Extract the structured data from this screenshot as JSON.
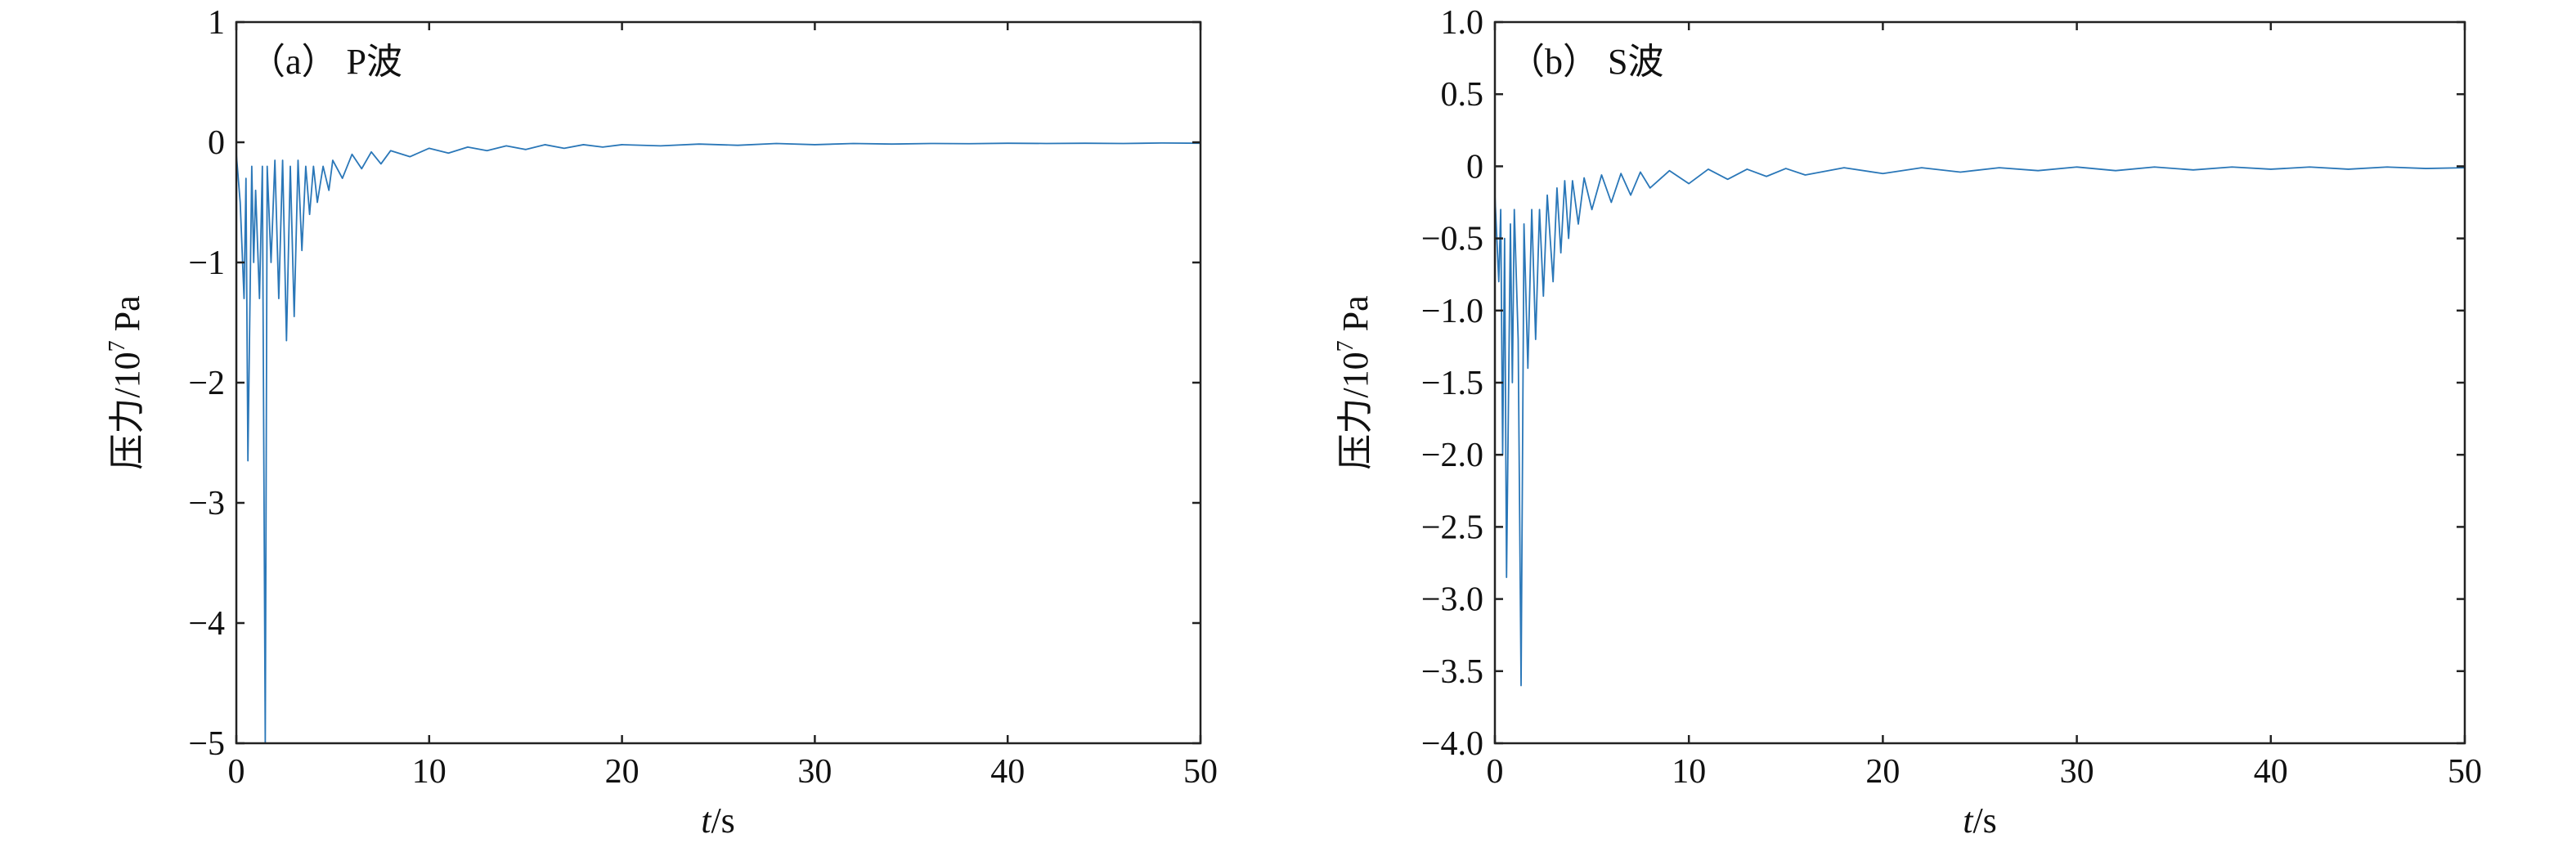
{
  "chart_data": [
    {
      "type": "line",
      "panel_label": "（a） P波",
      "xlabel_italic": "t",
      "xlabel_unit": "/s",
      "ylabel_main": "压力/10",
      "ylabel_sup": "7",
      "ylabel_unit": " Pa",
      "xlim": [
        0,
        50
      ],
      "ylim": [
        -5,
        1
      ],
      "xticks": [
        0,
        10,
        20,
        30,
        40,
        50
      ],
      "xtick_labels": [
        "0",
        "10",
        "20",
        "30",
        "40",
        "50"
      ],
      "yticks": [
        1,
        0,
        -1,
        -2,
        -3,
        -4,
        -5
      ],
      "ytick_labels": [
        "1",
        "0",
        "−1",
        "−2",
        "−3",
        "−4",
        "−5"
      ],
      "grid": false,
      "color": "#2a77b8",
      "series": [
        {
          "x": [
            0,
            0.2,
            0.4,
            0.5,
            0.6,
            0.8,
            0.9,
            1.0,
            1.2,
            1.35,
            1.5,
            1.6,
            1.8,
            2.0,
            2.2,
            2.4,
            2.6,
            2.8,
            3.0,
            3.2,
            3.4,
            3.6,
            3.8,
            4.0,
            4.2,
            4.5,
            4.8,
            5.0,
            5.5,
            6.0,
            6.5,
            7.0,
            7.5,
            8.0,
            9.0,
            10.0,
            11.0,
            12.0,
            13.0,
            14.0,
            15.0,
            16.0,
            17.0,
            18.0,
            19.0,
            20.0,
            22.0,
            24.0,
            26.0,
            28.0,
            30.0,
            32.0,
            34.0,
            36.0,
            38.0,
            40.0,
            42.0,
            44.0,
            46.0,
            48.0,
            50.0
          ],
          "y": [
            -0.1,
            -0.5,
            -1.3,
            -0.3,
            -2.65,
            -0.2,
            -1.0,
            -0.4,
            -1.3,
            -0.2,
            -5.0,
            -0.2,
            -1.0,
            -0.15,
            -1.3,
            -0.15,
            -1.65,
            -0.2,
            -1.45,
            -0.15,
            -0.9,
            -0.2,
            -0.6,
            -0.2,
            -0.5,
            -0.2,
            -0.4,
            -0.15,
            -0.3,
            -0.1,
            -0.22,
            -0.08,
            -0.18,
            -0.07,
            -0.12,
            -0.05,
            -0.09,
            -0.04,
            -0.07,
            -0.03,
            -0.06,
            -0.02,
            -0.05,
            -0.02,
            -0.04,
            -0.02,
            -0.03,
            -0.015,
            -0.025,
            -0.01,
            -0.02,
            -0.01,
            -0.015,
            -0.01,
            -0.012,
            -0.008,
            -0.01,
            -0.008,
            -0.01,
            -0.006,
            -0.008
          ]
        }
      ]
    },
    {
      "type": "line",
      "panel_label": "（b） S波",
      "xlabel_italic": "t",
      "xlabel_unit": "/s",
      "ylabel_main": "压力/10",
      "ylabel_sup": "7",
      "ylabel_unit": " Pa",
      "xlim": [
        0,
        50
      ],
      "ylim": [
        -4.0,
        1.0
      ],
      "xticks": [
        0,
        10,
        20,
        30,
        40,
        50
      ],
      "xtick_labels": [
        "0",
        "10",
        "20",
        "30",
        "40",
        "50"
      ],
      "yticks": [
        1.0,
        0.5,
        0,
        -0.5,
        -1.0,
        -1.5,
        -2.0,
        -2.5,
        -3.0,
        -3.5,
        -4.0
      ],
      "ytick_labels": [
        "1.0",
        "0.5",
        "0",
        "−0.5",
        "−1.0",
        "−1.5",
        "−2.0",
        "−2.5",
        "−3.0",
        "−3.5",
        "−4.0"
      ],
      "grid": false,
      "color": "#2a77b8",
      "series": [
        {
          "x": [
            0,
            0.2,
            0.3,
            0.4,
            0.5,
            0.6,
            0.8,
            0.9,
            1.0,
            1.2,
            1.35,
            1.5,
            1.7,
            1.9,
            2.1,
            2.3,
            2.5,
            2.7,
            3.0,
            3.2,
            3.4,
            3.6,
            3.8,
            4.0,
            4.3,
            4.6,
            5.0,
            5.5,
            6.0,
            6.5,
            7.0,
            7.5,
            8.0,
            9.0,
            10.0,
            11.0,
            12.0,
            13.0,
            14.0,
            15.0,
            16.0,
            18.0,
            20.0,
            22.0,
            24.0,
            26.0,
            28.0,
            30.0,
            32.0,
            34.0,
            36.0,
            38.0,
            40.0,
            42.0,
            44.0,
            46.0,
            48.0,
            50.0
          ],
          "y": [
            -0.2,
            -0.8,
            -0.3,
            -2.0,
            -0.5,
            -2.85,
            -0.4,
            -1.5,
            -0.3,
            -1.2,
            -3.6,
            -0.4,
            -1.4,
            -0.3,
            -1.2,
            -0.3,
            -0.9,
            -0.2,
            -0.8,
            -0.15,
            -0.6,
            -0.1,
            -0.5,
            -0.1,
            -0.4,
            -0.08,
            -0.3,
            -0.06,
            -0.25,
            -0.05,
            -0.2,
            -0.04,
            -0.15,
            -0.03,
            -0.12,
            -0.02,
            -0.09,
            -0.02,
            -0.07,
            -0.015,
            -0.06,
            -0.01,
            -0.05,
            -0.01,
            -0.04,
            -0.01,
            -0.03,
            -0.005,
            -0.03,
            -0.005,
            -0.025,
            -0.005,
            -0.02,
            -0.005,
            -0.02,
            -0.005,
            -0.015,
            -0.01
          ]
        }
      ]
    }
  ]
}
